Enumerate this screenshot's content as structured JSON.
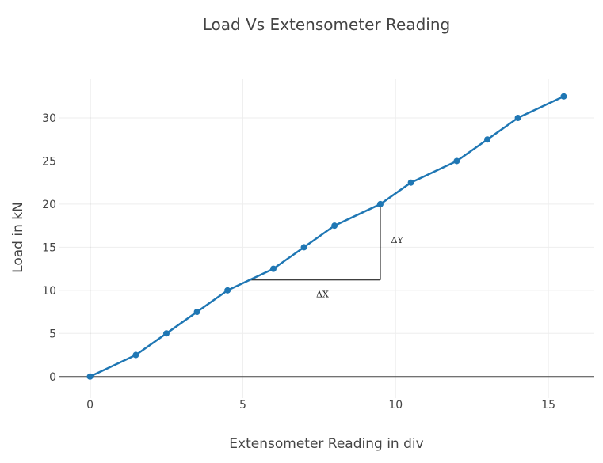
{
  "chart_data": {
    "type": "line",
    "title": "Load Vs Extensometer Reading",
    "xlabel": "Extensometer Reading in div",
    "ylabel": "Load in kN",
    "xlim": [
      -1,
      16.5
    ],
    "ylim": [
      -2.5,
      34.5
    ],
    "xticks": [
      0,
      5,
      10,
      15
    ],
    "yticks": [
      0,
      5,
      10,
      15,
      20,
      25,
      30
    ],
    "grid": true,
    "series": [
      {
        "color": "#1f77b4",
        "x": [
          0,
          1.5,
          2.5,
          3.5,
          4.5,
          6,
          7,
          8,
          9.5,
          10.5,
          12,
          13,
          14,
          15.5
        ],
        "y": [
          0,
          2.5,
          5,
          7.5,
          10,
          12.5,
          15,
          17.5,
          20,
          22.5,
          25,
          27.5,
          30,
          32.5
        ]
      }
    ],
    "annotations": [
      {
        "text": "ΔX",
        "x": 7.4,
        "y": 9.2
      },
      {
        "text": "ΔY",
        "x": 9.85,
        "y": 15.5
      }
    ],
    "slope_triangle": {
      "x0": 5.2,
      "x1": 9.5,
      "y0": 11.2,
      "y1": 20
    }
  }
}
